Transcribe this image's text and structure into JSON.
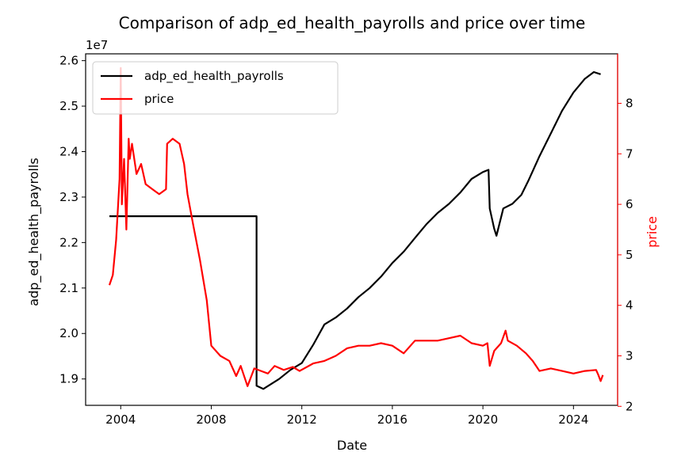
{
  "chart_data": {
    "type": "line",
    "title": "Comparison of adp_ed_health_payrolls and price over time",
    "xlabel": "Date",
    "ylabel_left": "adp_ed_health_payrolls",
    "ylabel_right": "price",
    "left_axis_multiplier": "1e7",
    "xlim": [
      2002.45,
      2025.95
    ],
    "ylim_left": [
      18420000,
      26150000
    ],
    "ylim_right": [
      2.02,
      8.98
    ],
    "x_ticks": [
      2004,
      2008,
      2012,
      2016,
      2020,
      2024
    ],
    "x_tick_labels": [
      "2004",
      "2008",
      "2012",
      "2016",
      "2020",
      "2024"
    ],
    "y_left_ticks": [
      19000000,
      20000000,
      21000000,
      22000000,
      23000000,
      24000000,
      25000000,
      26000000
    ],
    "y_left_tick_labels": [
      "1.9",
      "2.0",
      "2.1",
      "2.2",
      "2.3",
      "2.4",
      "2.5",
      "2.6"
    ],
    "y_right_ticks": [
      2,
      3,
      4,
      5,
      6,
      7,
      8
    ],
    "y_right_tick_labels": [
      "2",
      "3",
      "4",
      "5",
      "6",
      "7",
      "8"
    ],
    "grid": false,
    "legend_position": "upper-left",
    "series": [
      {
        "name": "adp_ed_health_payrolls",
        "axis": "left",
        "color": "#000000",
        "x": [
          2003.5,
          2010.0,
          2010.0,
          2010.3,
          2011.0,
          2011.5,
          2012.0,
          2012.5,
          2013.0,
          2013.5,
          2014.0,
          2014.5,
          2015.0,
          2015.5,
          2016.0,
          2016.5,
          2017.0,
          2017.5,
          2018.0,
          2018.5,
          2019.0,
          2019.5,
          2020.0,
          2020.25,
          2020.3,
          2020.5,
          2020.6,
          2020.9,
          2021.3,
          2021.7,
          2022.0,
          2022.5,
          2023.0,
          2023.5,
          2024.0,
          2024.5,
          2024.9,
          2025.2
        ],
        "y": [
          22580000,
          22580000,
          18850000,
          18780000,
          19000000,
          19200000,
          19350000,
          19750000,
          20200000,
          20350000,
          20550000,
          20800000,
          21000000,
          21250000,
          21550000,
          21800000,
          22100000,
          22400000,
          22650000,
          22850000,
          23100000,
          23400000,
          23550000,
          23600000,
          22750000,
          22300000,
          22150000,
          22750000,
          22850000,
          23050000,
          23350000,
          23900000,
          24400000,
          24900000,
          25300000,
          25600000,
          25750000,
          25700000
        ]
      },
      {
        "name": "price",
        "axis": "right",
        "color": "#ff0000",
        "x": [
          2003.5,
          2003.65,
          2003.8,
          2003.95,
          2004.0,
          2004.05,
          2004.15,
          2004.25,
          2004.35,
          2004.4,
          2004.5,
          2004.7,
          2004.9,
          2005.1,
          2005.4,
          2005.7,
          2006.0,
          2006.05,
          2006.3,
          2006.6,
          2006.8,
          2006.95,
          2007.2,
          2007.5,
          2007.8,
          2008.0,
          2008.4,
          2008.8,
          2009.1,
          2009.3,
          2009.6,
          2009.9,
          2010.2,
          2010.5,
          2010.8,
          2011.2,
          2011.6,
          2011.9,
          2012.5,
          2013.0,
          2013.5,
          2014.0,
          2014.5,
          2015.0,
          2015.5,
          2016.0,
          2016.5,
          2017.0,
          2017.5,
          2018.0,
          2018.5,
          2019.0,
          2019.5,
          2020.0,
          2020.2,
          2020.3,
          2020.5,
          2020.8,
          2021.0,
          2021.1,
          2021.5,
          2021.9,
          2022.2,
          2022.5,
          2023.0,
          2023.5,
          2024.0,
          2024.5,
          2025.0,
          2025.1,
          2025.2,
          2025.3
        ],
        "y": [
          4.4,
          4.6,
          5.3,
          6.5,
          8.7,
          6.0,
          6.9,
          5.5,
          7.3,
          6.9,
          7.2,
          6.6,
          6.8,
          6.4,
          6.3,
          6.2,
          6.3,
          7.2,
          7.3,
          7.2,
          6.8,
          6.2,
          5.6,
          4.9,
          4.1,
          3.2,
          3.0,
          2.9,
          2.6,
          2.8,
          2.4,
          2.75,
          2.7,
          2.65,
          2.8,
          2.72,
          2.78,
          2.7,
          2.85,
          2.9,
          3.0,
          3.15,
          3.2,
          3.2,
          3.25,
          3.2,
          3.05,
          3.3,
          3.3,
          3.3,
          3.35,
          3.4,
          3.25,
          3.2,
          3.25,
          2.8,
          3.1,
          3.25,
          3.5,
          3.3,
          3.2,
          3.05,
          2.9,
          2.7,
          2.75,
          2.7,
          2.65,
          2.7,
          2.72,
          2.62,
          2.5,
          2.62
        ]
      }
    ]
  }
}
